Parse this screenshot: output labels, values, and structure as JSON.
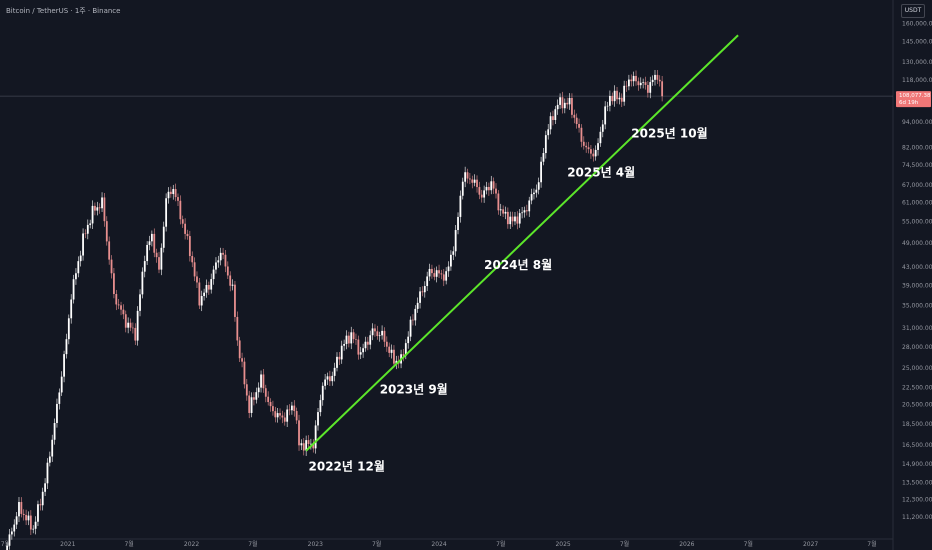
{
  "header": {
    "symbol_title": "Bitcoin / TetherUS · 1주 · Binance",
    "currency": "USDT"
  },
  "colors": {
    "background": "#131722",
    "candle_up": "#ffffff",
    "candle_down": "#e88f8f",
    "trendline": "#5ce62a",
    "price_tag": "#f07777",
    "current_price_line": "#787b86"
  },
  "chart_data": {
    "type": "candlestick",
    "y_scale": "log",
    "ylim": [
      10000,
      170000
    ],
    "xlim": [
      "2020-06-15",
      "2027-09-01"
    ],
    "y_ticks": [
      {
        "value": 11200,
        "label": "11,200.00"
      },
      {
        "value": 12300,
        "label": "12,300.00"
      },
      {
        "value": 13500,
        "label": "13,500.00"
      },
      {
        "value": 14900,
        "label": "14,900.00"
      },
      {
        "value": 16500,
        "label": "16,500.00"
      },
      {
        "value": 18500,
        "label": "18,500.00"
      },
      {
        "value": 20500,
        "label": "20,500.00"
      },
      {
        "value": 22500,
        "label": "22,500.00"
      },
      {
        "value": 25000,
        "label": "25,000.00"
      },
      {
        "value": 28000,
        "label": "28,000.00"
      },
      {
        "value": 31000,
        "label": "31,000.00"
      },
      {
        "value": 35000,
        "label": "35,000.00"
      },
      {
        "value": 39000,
        "label": "39,000.00"
      },
      {
        "value": 43000,
        "label": "43,000.00"
      },
      {
        "value": 49000,
        "label": "49,000.00"
      },
      {
        "value": 55000,
        "label": "55,000.00"
      },
      {
        "value": 61000,
        "label": "61,000.00"
      },
      {
        "value": 67000,
        "label": "67,000.00"
      },
      {
        "value": 74500,
        "label": "74,500.00"
      },
      {
        "value": 82000,
        "label": "82,000.00"
      },
      {
        "value": 94000,
        "label": "94,000.00"
      },
      {
        "value": 118000,
        "label": "118,000.00"
      },
      {
        "value": 130000,
        "label": "130,000.00"
      },
      {
        "value": 145000,
        "label": "145,000.00"
      },
      {
        "value": 160000,
        "label": "160,000.00"
      }
    ],
    "x_ticks": [
      {
        "date": "2020-07-01",
        "label": "7월"
      },
      {
        "date": "2021-01-01",
        "label": "2021"
      },
      {
        "date": "2021-07-01",
        "label": "7월"
      },
      {
        "date": "2022-01-01",
        "label": "2022"
      },
      {
        "date": "2022-07-01",
        "label": "7월"
      },
      {
        "date": "2023-01-01",
        "label": "2023"
      },
      {
        "date": "2023-07-01",
        "label": "7월"
      },
      {
        "date": "2024-01-01",
        "label": "2024"
      },
      {
        "date": "2024-07-01",
        "label": "7월"
      },
      {
        "date": "2025-01-01",
        "label": "2025"
      },
      {
        "date": "2025-07-01",
        "label": "7월"
      },
      {
        "date": "2026-01-01",
        "label": "2026"
      },
      {
        "date": "2026-07-01",
        "label": "7월"
      },
      {
        "date": "2027-01-01",
        "label": "2027"
      },
      {
        "date": "2027-07-01",
        "label": "7월"
      }
    ],
    "price_path": [
      [
        "2020-06-29",
        9200
      ],
      [
        "2020-08-10",
        11800
      ],
      [
        "2020-09-21",
        10500
      ],
      [
        "2020-10-26",
        13500
      ],
      [
        "2020-11-23",
        18500
      ],
      [
        "2020-12-28",
        29000
      ],
      [
        "2021-01-11",
        37000
      ],
      [
        "2021-02-15",
        50000
      ],
      [
        "2021-03-15",
        58000
      ],
      [
        "2021-04-12",
        61000
      ],
      [
        "2021-05-17",
        37000
      ],
      [
        "2021-06-21",
        32000
      ],
      [
        "2021-07-19",
        30000
      ],
      [
        "2021-08-16",
        46000
      ],
      [
        "2021-09-06",
        51000
      ],
      [
        "2021-09-27",
        42000
      ],
      [
        "2021-10-18",
        62000
      ],
      [
        "2021-11-08",
        66000
      ],
      [
        "2021-11-29",
        57000
      ],
      [
        "2021-12-27",
        47000
      ],
      [
        "2022-01-24",
        36000
      ],
      [
        "2022-02-21",
        39000
      ],
      [
        "2022-03-28",
        47000
      ],
      [
        "2022-05-02",
        38000
      ],
      [
        "2022-05-16",
        29000
      ],
      [
        "2022-06-20",
        20000
      ],
      [
        "2022-07-25",
        23500
      ],
      [
        "2022-08-22",
        20000
      ],
      [
        "2022-09-26",
        19000
      ],
      [
        "2022-10-31",
        20500
      ],
      [
        "2022-11-14",
        16500
      ],
      [
        "2022-12-26",
        16600
      ],
      [
        "2023-01-23",
        23000
      ],
      [
        "2023-02-20",
        24000
      ],
      [
        "2023-03-20",
        28000
      ],
      [
        "2023-04-17",
        30000
      ],
      [
        "2023-05-15",
        27000
      ],
      [
        "2023-06-19",
        30500
      ],
      [
        "2023-07-17",
        29800
      ],
      [
        "2023-08-21",
        26000
      ],
      [
        "2023-09-11",
        26000
      ],
      [
        "2023-10-23",
        34500
      ],
      [
        "2023-12-04",
        42000
      ],
      [
        "2024-01-22",
        41000
      ],
      [
        "2024-02-19",
        51000
      ],
      [
        "2024-03-11",
        70000
      ],
      [
        "2024-04-08",
        69000
      ],
      [
        "2024-05-06",
        63000
      ],
      [
        "2024-06-03",
        68000
      ],
      [
        "2024-07-01",
        58000
      ],
      [
        "2024-08-05",
        55000
      ],
      [
        "2024-09-09",
        58000
      ],
      [
        "2024-10-21",
        68000
      ],
      [
        "2024-11-11",
        88000
      ],
      [
        "2024-12-16",
        104000
      ],
      [
        "2025-01-20",
        104000
      ],
      [
        "2025-02-24",
        86000
      ],
      [
        "2025-03-10",
        81000
      ],
      [
        "2025-04-07",
        79000
      ],
      [
        "2025-04-28",
        95000
      ],
      [
        "2025-05-19",
        108000
      ],
      [
        "2025-06-23",
        107000
      ],
      [
        "2025-07-14",
        119000
      ],
      [
        "2025-08-18",
        116000
      ],
      [
        "2025-09-08",
        113000
      ],
      [
        "2025-10-06",
        122000
      ],
      [
        "2025-10-20",
        108000
      ]
    ],
    "trendline": {
      "start": {
        "date": "2022-12-05",
        "price": 16000
      },
      "end": {
        "date": "2026-06-01",
        "price": 150000
      }
    },
    "current_price": {
      "value": 108077.38,
      "label": "108,077.38",
      "countdown": "6d 19h"
    },
    "annotations": [
      {
        "text": "2022년 12월",
        "date": "2022-12-12",
        "price": 14400
      },
      {
        "text": "2023년 9월",
        "date": "2023-07-10",
        "price": 21800
      },
      {
        "text": "2024년 8월",
        "date": "2024-05-13",
        "price": 42600
      },
      {
        "text": "2025년 4월",
        "date": "2025-01-13",
        "price": 70000
      },
      {
        "text": "2025년 10월",
        "date": "2025-07-21",
        "price": 86500
      }
    ]
  }
}
